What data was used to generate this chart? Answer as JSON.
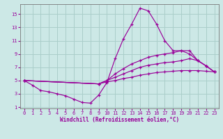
{
  "xlabel": "Windchill (Refroidissement éolien,°C)",
  "bg_color": "#cce8e6",
  "grid_color": "#aaceca",
  "line_color": "#990099",
  "xlim": [
    -0.5,
    23.5
  ],
  "ylim": [
    0.8,
    16.5
  ],
  "xticks": [
    0,
    1,
    2,
    3,
    4,
    5,
    6,
    7,
    8,
    9,
    10,
    11,
    12,
    13,
    14,
    15,
    16,
    17,
    18,
    19,
    20,
    21,
    22,
    23
  ],
  "yticks": [
    1,
    3,
    5,
    7,
    9,
    11,
    13,
    15
  ],
  "curve1_x": [
    0,
    1,
    2,
    3,
    4,
    5,
    6,
    7,
    8,
    9,
    10,
    11,
    12,
    13,
    14,
    15,
    16,
    17,
    18,
    19,
    20,
    21,
    22,
    23
  ],
  "curve1_y": [
    5.0,
    4.3,
    3.5,
    3.3,
    3.0,
    2.7,
    2.2,
    1.7,
    1.6,
    2.8,
    4.7,
    8.3,
    11.3,
    13.5,
    15.9,
    15.5,
    13.5,
    11.0,
    9.5,
    9.5,
    9.0,
    8.0,
    7.2,
    6.3
  ],
  "curve2_x": [
    0,
    9,
    10,
    11,
    12,
    13,
    14,
    15,
    16,
    17,
    18,
    19,
    20,
    21,
    22,
    23
  ],
  "curve2_y": [
    5.0,
    4.5,
    5.0,
    6.0,
    6.8,
    7.5,
    8.0,
    8.5,
    8.8,
    9.0,
    9.2,
    9.5,
    9.5,
    8.0,
    7.2,
    6.3
  ],
  "curve3_x": [
    0,
    9,
    10,
    11,
    12,
    13,
    14,
    15,
    16,
    17,
    18,
    19,
    20,
    21,
    22,
    23
  ],
  "curve3_y": [
    5.0,
    4.5,
    5.0,
    5.5,
    6.0,
    6.5,
    7.0,
    7.3,
    7.5,
    7.7,
    7.8,
    8.0,
    8.3,
    8.0,
    7.2,
    6.3
  ],
  "curve4_x": [
    0,
    9,
    10,
    11,
    12,
    13,
    14,
    15,
    16,
    17,
    18,
    19,
    20,
    21,
    22,
    23
  ],
  "curve4_y": [
    5.0,
    4.5,
    4.8,
    5.0,
    5.3,
    5.5,
    5.8,
    6.0,
    6.2,
    6.3,
    6.4,
    6.5,
    6.5,
    6.5,
    6.4,
    6.3
  ]
}
